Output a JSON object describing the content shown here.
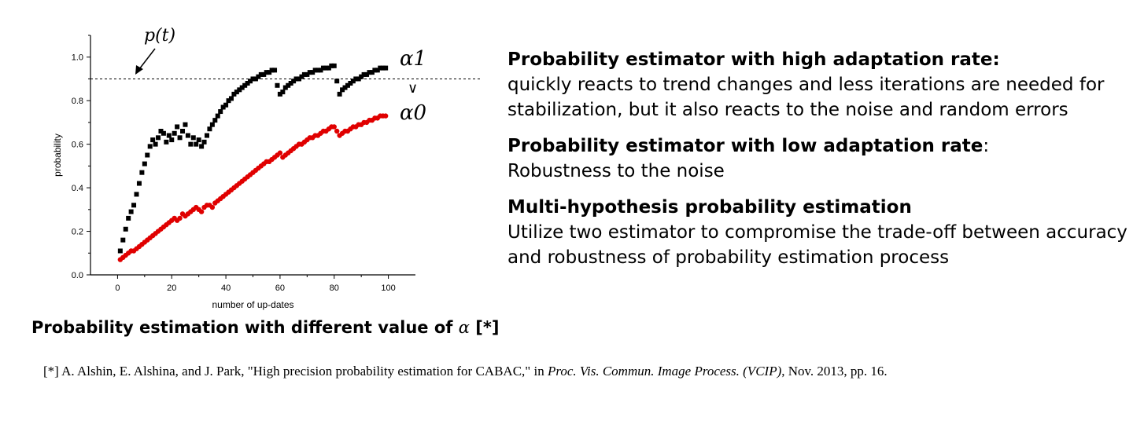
{
  "chart_data": {
    "type": "scatter",
    "xlabel": "number of up-dates",
    "ylabel": "probability",
    "xlim": [
      -10,
      110
    ],
    "ylim": [
      0,
      1.1
    ],
    "x_ticks": [
      0,
      20,
      40,
      60,
      80,
      100
    ],
    "y_ticks": [
      0.0,
      0.2,
      0.4,
      0.6,
      0.8,
      1.0
    ],
    "grid": false,
    "reference_line": {
      "y": 0.9,
      "label": "p(t)",
      "style": "dashed"
    },
    "series": [
      {
        "name": "α1",
        "color": "#000000",
        "marker": "square",
        "x": [
          1,
          2,
          3,
          4,
          5,
          6,
          7,
          8,
          9,
          10,
          11,
          12,
          13,
          14,
          15,
          16,
          17,
          18,
          19,
          20,
          21,
          22,
          23,
          24,
          25,
          26,
          27,
          28,
          29,
          30,
          31,
          32,
          33,
          34,
          35,
          36,
          37,
          38,
          39,
          40,
          41,
          42,
          43,
          44,
          45,
          46,
          47,
          48,
          49,
          50,
          51,
          52,
          53,
          54,
          55,
          56,
          57,
          58,
          59,
          60,
          61,
          62,
          63,
          64,
          65,
          66,
          67,
          68,
          69,
          70,
          71,
          72,
          73,
          74,
          75,
          76,
          77,
          78,
          79,
          80,
          81,
          82,
          83,
          84,
          85,
          86,
          87,
          88,
          89,
          90,
          91,
          92,
          93,
          94,
          95,
          96,
          97,
          98,
          99
        ],
        "y": [
          0.11,
          0.16,
          0.21,
          0.26,
          0.29,
          0.32,
          0.37,
          0.42,
          0.47,
          0.51,
          0.55,
          0.59,
          0.62,
          0.6,
          0.63,
          0.66,
          0.65,
          0.61,
          0.64,
          0.62,
          0.65,
          0.68,
          0.63,
          0.66,
          0.69,
          0.64,
          0.6,
          0.63,
          0.6,
          0.62,
          0.59,
          0.61,
          0.64,
          0.67,
          0.69,
          0.71,
          0.73,
          0.75,
          0.77,
          0.78,
          0.8,
          0.81,
          0.83,
          0.84,
          0.85,
          0.86,
          0.87,
          0.88,
          0.89,
          0.9,
          0.9,
          0.91,
          0.92,
          0.92,
          0.93,
          0.93,
          0.94,
          0.94,
          0.87,
          0.83,
          0.84,
          0.86,
          0.87,
          0.88,
          0.89,
          0.9,
          0.9,
          0.91,
          0.92,
          0.92,
          0.93,
          0.93,
          0.94,
          0.94,
          0.94,
          0.95,
          0.95,
          0.95,
          0.96,
          0.96,
          0.89,
          0.83,
          0.85,
          0.86,
          0.87,
          0.88,
          0.89,
          0.9,
          0.9,
          0.91,
          0.92,
          0.92,
          0.93,
          0.93,
          0.94,
          0.94,
          0.95,
          0.95,
          0.95
        ]
      },
      {
        "name": "α0",
        "color": "#e00000",
        "marker": "circle",
        "x": [
          1,
          2,
          3,
          4,
          5,
          6,
          7,
          8,
          9,
          10,
          11,
          12,
          13,
          14,
          15,
          16,
          17,
          18,
          19,
          20,
          21,
          22,
          23,
          24,
          25,
          26,
          27,
          28,
          29,
          30,
          31,
          32,
          33,
          34,
          35,
          36,
          37,
          38,
          39,
          40,
          41,
          42,
          43,
          44,
          45,
          46,
          47,
          48,
          49,
          50,
          51,
          52,
          53,
          54,
          55,
          56,
          57,
          58,
          59,
          60,
          61,
          62,
          63,
          64,
          65,
          66,
          67,
          68,
          69,
          70,
          71,
          72,
          73,
          74,
          75,
          76,
          77,
          78,
          79,
          80,
          81,
          82,
          83,
          84,
          85,
          86,
          87,
          88,
          89,
          90,
          91,
          92,
          93,
          94,
          95,
          96,
          97,
          98,
          99
        ],
        "y": [
          0.07,
          0.08,
          0.09,
          0.1,
          0.11,
          0.11,
          0.12,
          0.13,
          0.14,
          0.15,
          0.16,
          0.17,
          0.18,
          0.19,
          0.2,
          0.21,
          0.22,
          0.23,
          0.24,
          0.25,
          0.26,
          0.25,
          0.26,
          0.28,
          0.27,
          0.28,
          0.29,
          0.3,
          0.31,
          0.3,
          0.29,
          0.31,
          0.32,
          0.32,
          0.31,
          0.33,
          0.34,
          0.35,
          0.36,
          0.37,
          0.38,
          0.39,
          0.4,
          0.41,
          0.42,
          0.43,
          0.44,
          0.45,
          0.46,
          0.47,
          0.48,
          0.49,
          0.5,
          0.51,
          0.52,
          0.52,
          0.53,
          0.54,
          0.55,
          0.56,
          0.54,
          0.55,
          0.56,
          0.57,
          0.58,
          0.59,
          0.6,
          0.6,
          0.61,
          0.62,
          0.63,
          0.63,
          0.64,
          0.64,
          0.65,
          0.66,
          0.66,
          0.67,
          0.68,
          0.68,
          0.66,
          0.64,
          0.65,
          0.66,
          0.66,
          0.67,
          0.68,
          0.68,
          0.69,
          0.69,
          0.7,
          0.7,
          0.71,
          0.71,
          0.72,
          0.72,
          0.73,
          0.73,
          0.73
        ]
      }
    ],
    "annotations": [
      {
        "text": "p(t)"
      },
      {
        "text": "α1"
      },
      {
        "text": "∨"
      },
      {
        "text": "α0"
      }
    ]
  },
  "caption": {
    "prefix": "Probability estimation with different value of",
    "symbol": "α",
    "suffix": "[*]"
  },
  "blocks": [
    {
      "title": "Probability estimator with high adaptation rate:",
      "title_suffix": "",
      "body": "quickly reacts to trend changes and less iterations are needed for stabilization, but it also reacts to the noise and random errors"
    },
    {
      "title": "Probability estimator with low adaptation rate",
      "title_suffix": ":",
      "body": "Robustness to the noise"
    },
    {
      "title": "Multi-hypothesis probability estimation",
      "title_suffix": "",
      "body": "Utilize two estimator to compromise the trade-off between accuracy and robustness of probability estimation process"
    }
  ],
  "reference": {
    "prefix": "[*] A. Alshin, E. Alshina, and J. Park, \"High precision probability estimation for CABAC,\" in",
    "venue": "Proc. Vis. Commun. Image Process. (VCIP)",
    "suffix": ", Nov. 2013, pp. 16."
  }
}
